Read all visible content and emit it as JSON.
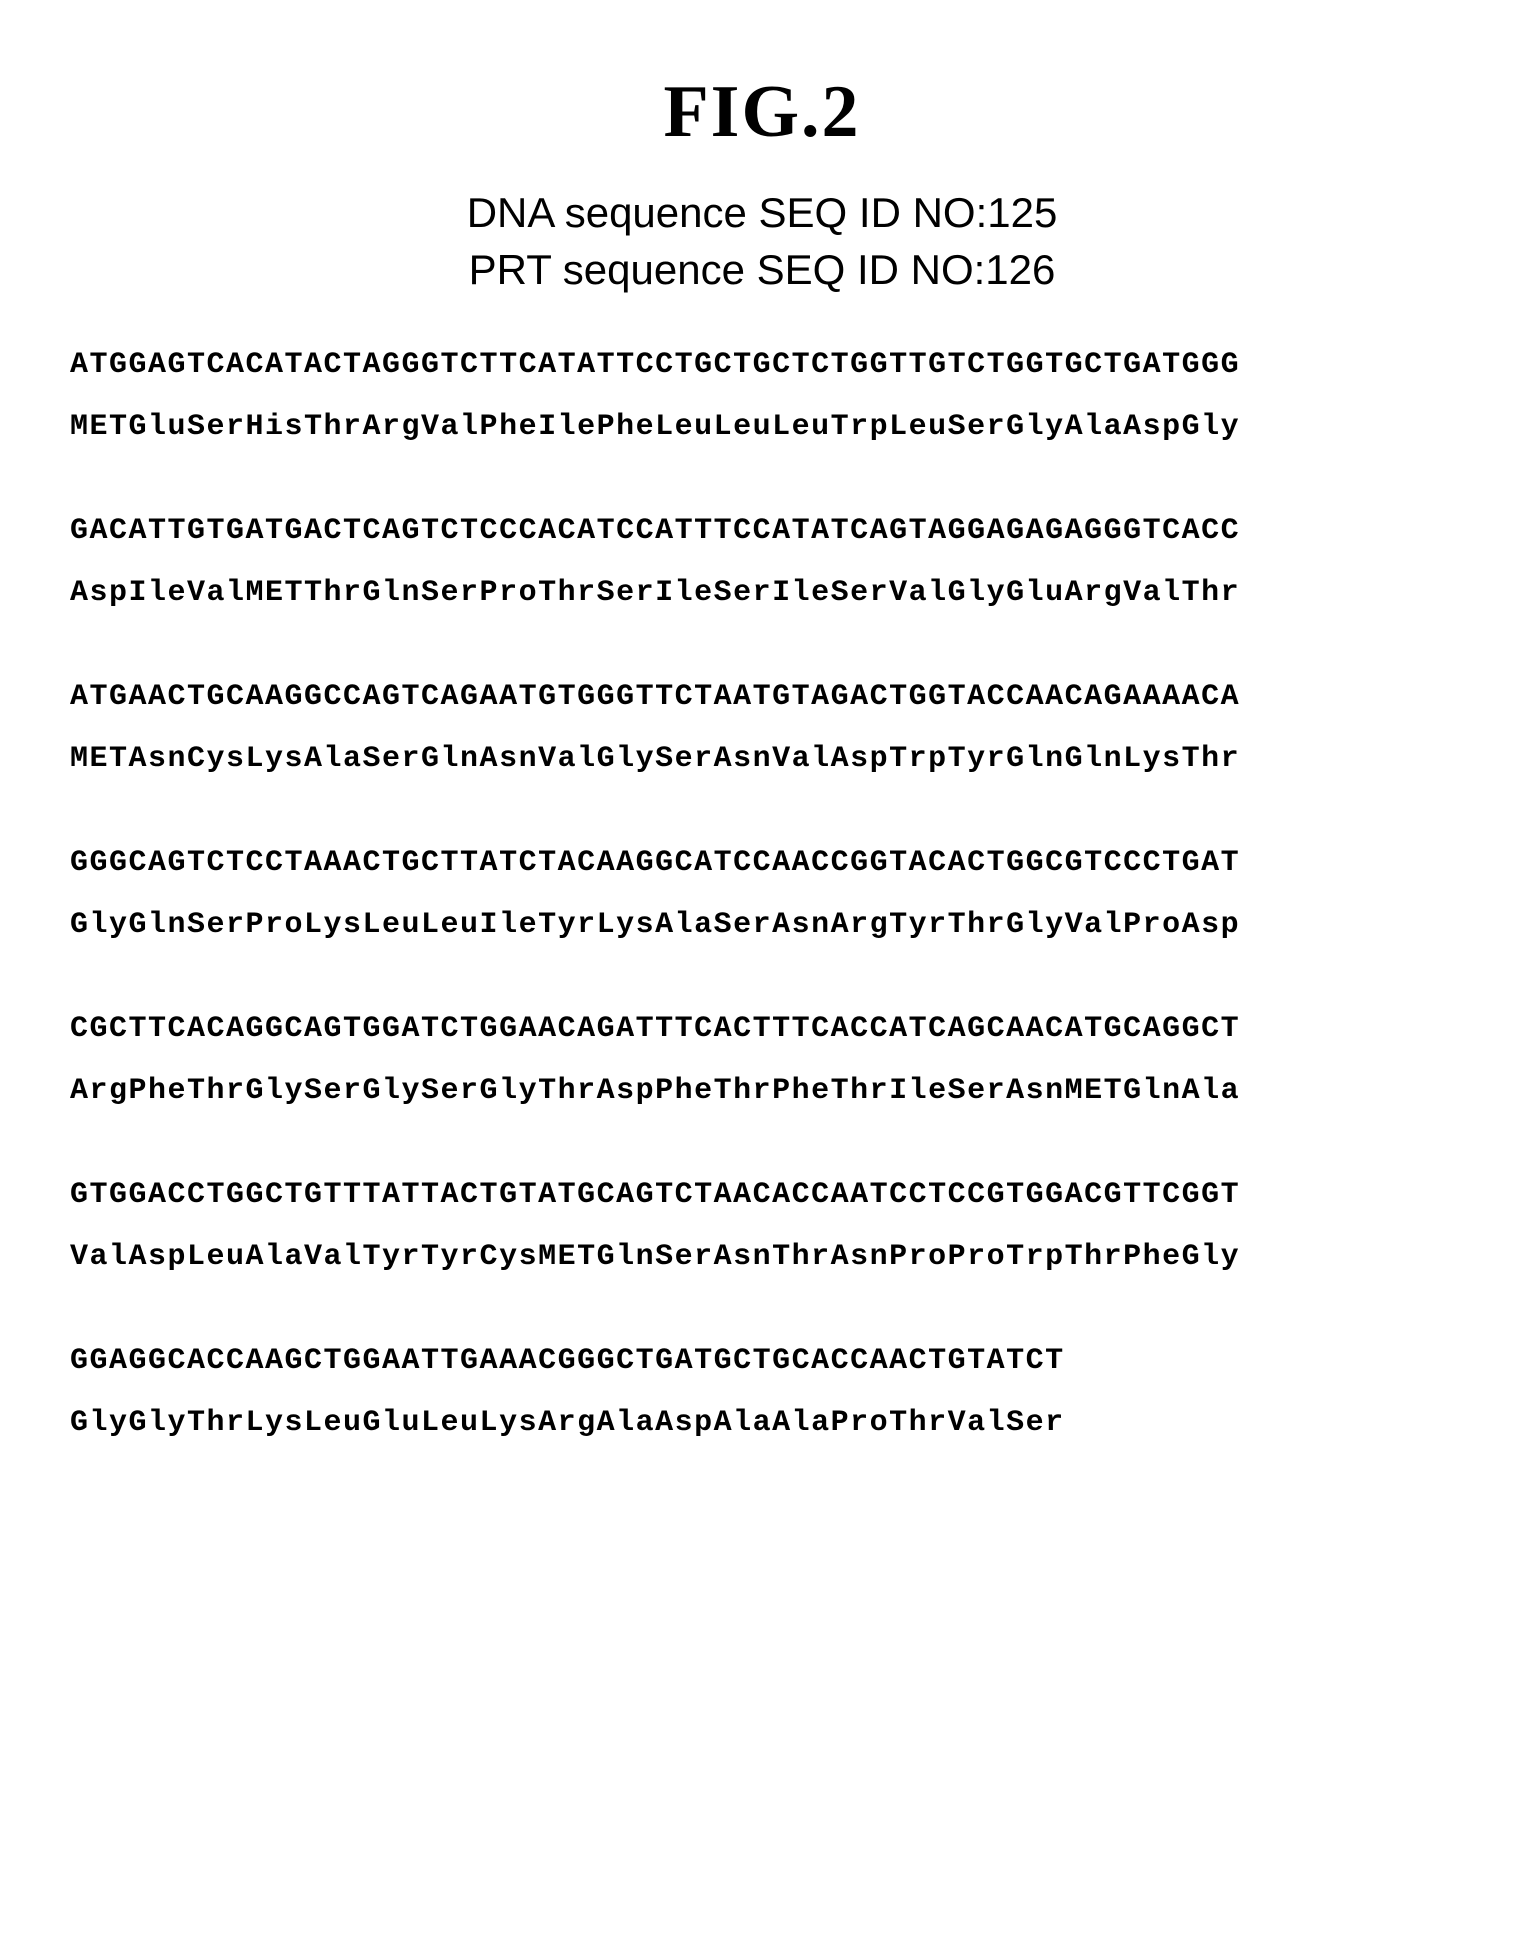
{
  "figure": {
    "title": "FIG.2",
    "subtitle_line1": "DNA sequence SEQ ID NO:125",
    "subtitle_line2": "PRT sequence SEQ ID NO:126"
  },
  "sequences": [
    {
      "dna": "ATGGAGTCACATACTAGGGTCTTCATATTCCTGCTGCTCTGGTTGTCTGGTGCTGATGGG",
      "prt": "METGluSerHisThrArgValPheIlePheLeuLeuLeuTrpLeuSerGlyAlaAspGly"
    },
    {
      "dna": "GACATTGTGATGACTCAGTCTCCCACATCCATTTCCATATCAGTAGGAGAGAGGGTCACC",
      "prt": "AspIleValMETThrGlnSerProThrSerIleSerIleSerValGlyGluArgValThr"
    },
    {
      "dna": "ATGAACTGCAAGGCCAGTCAGAATGTGGGTTCTAATGTAGACTGGTACCAACAGAAAACA",
      "prt": "METAsnCysLysAlaSerGlnAsnValGlySerAsnValAspTrpTyrGlnGlnLysThr"
    },
    {
      "dna": "GGGCAGTCTCCTAAACTGCTTATCTACAAGGCATCCAACCGGTACACTGGCGTCCCTGAT",
      "prt": "GlyGlnSerProLysLeuLeuIleTyrLysAlaSerAsnArgTyrThrGlyValProAsp"
    },
    {
      "dna": "CGCTTCACAGGCAGTGGATCTGGAACAGATTTCACTTTCACCATCAGCAACATGCAGGCT",
      "prt": "ArgPheThrGlySerGlySerGlyThrAspPheThrPheThrIleSerAsnMETGlnAla"
    },
    {
      "dna": "GTGGACCTGGCTGTTTATTACTGTATGCAGTCTAACACCAATCCTCCGTGGACGTTCGGT",
      "prt": "ValAspLeuAlaValTyrTyrCysMETGlnSerAsnThrAsnProProTrpThrPheGly"
    },
    {
      "dna": "GGAGGCACCAAGCTGGAATTGAAACGGGCTGATGCTGCACCAACTGTATCT",
      "prt": "GlyGlyThrLysLeuGluLeuLysArgAlaAspAlaAlaProThrValSer"
    }
  ],
  "styling": {
    "background_color": "#ffffff",
    "text_color": "#000000",
    "title_font": "Times New Roman",
    "title_fontsize": 74,
    "subtitle_font": "Arial",
    "subtitle_fontsize": 42,
    "sequence_font": "Courier New",
    "sequence_fontsize": 30,
    "sequence_weight": "bold",
    "block_spacing": 70,
    "line_spacing": 28
  }
}
